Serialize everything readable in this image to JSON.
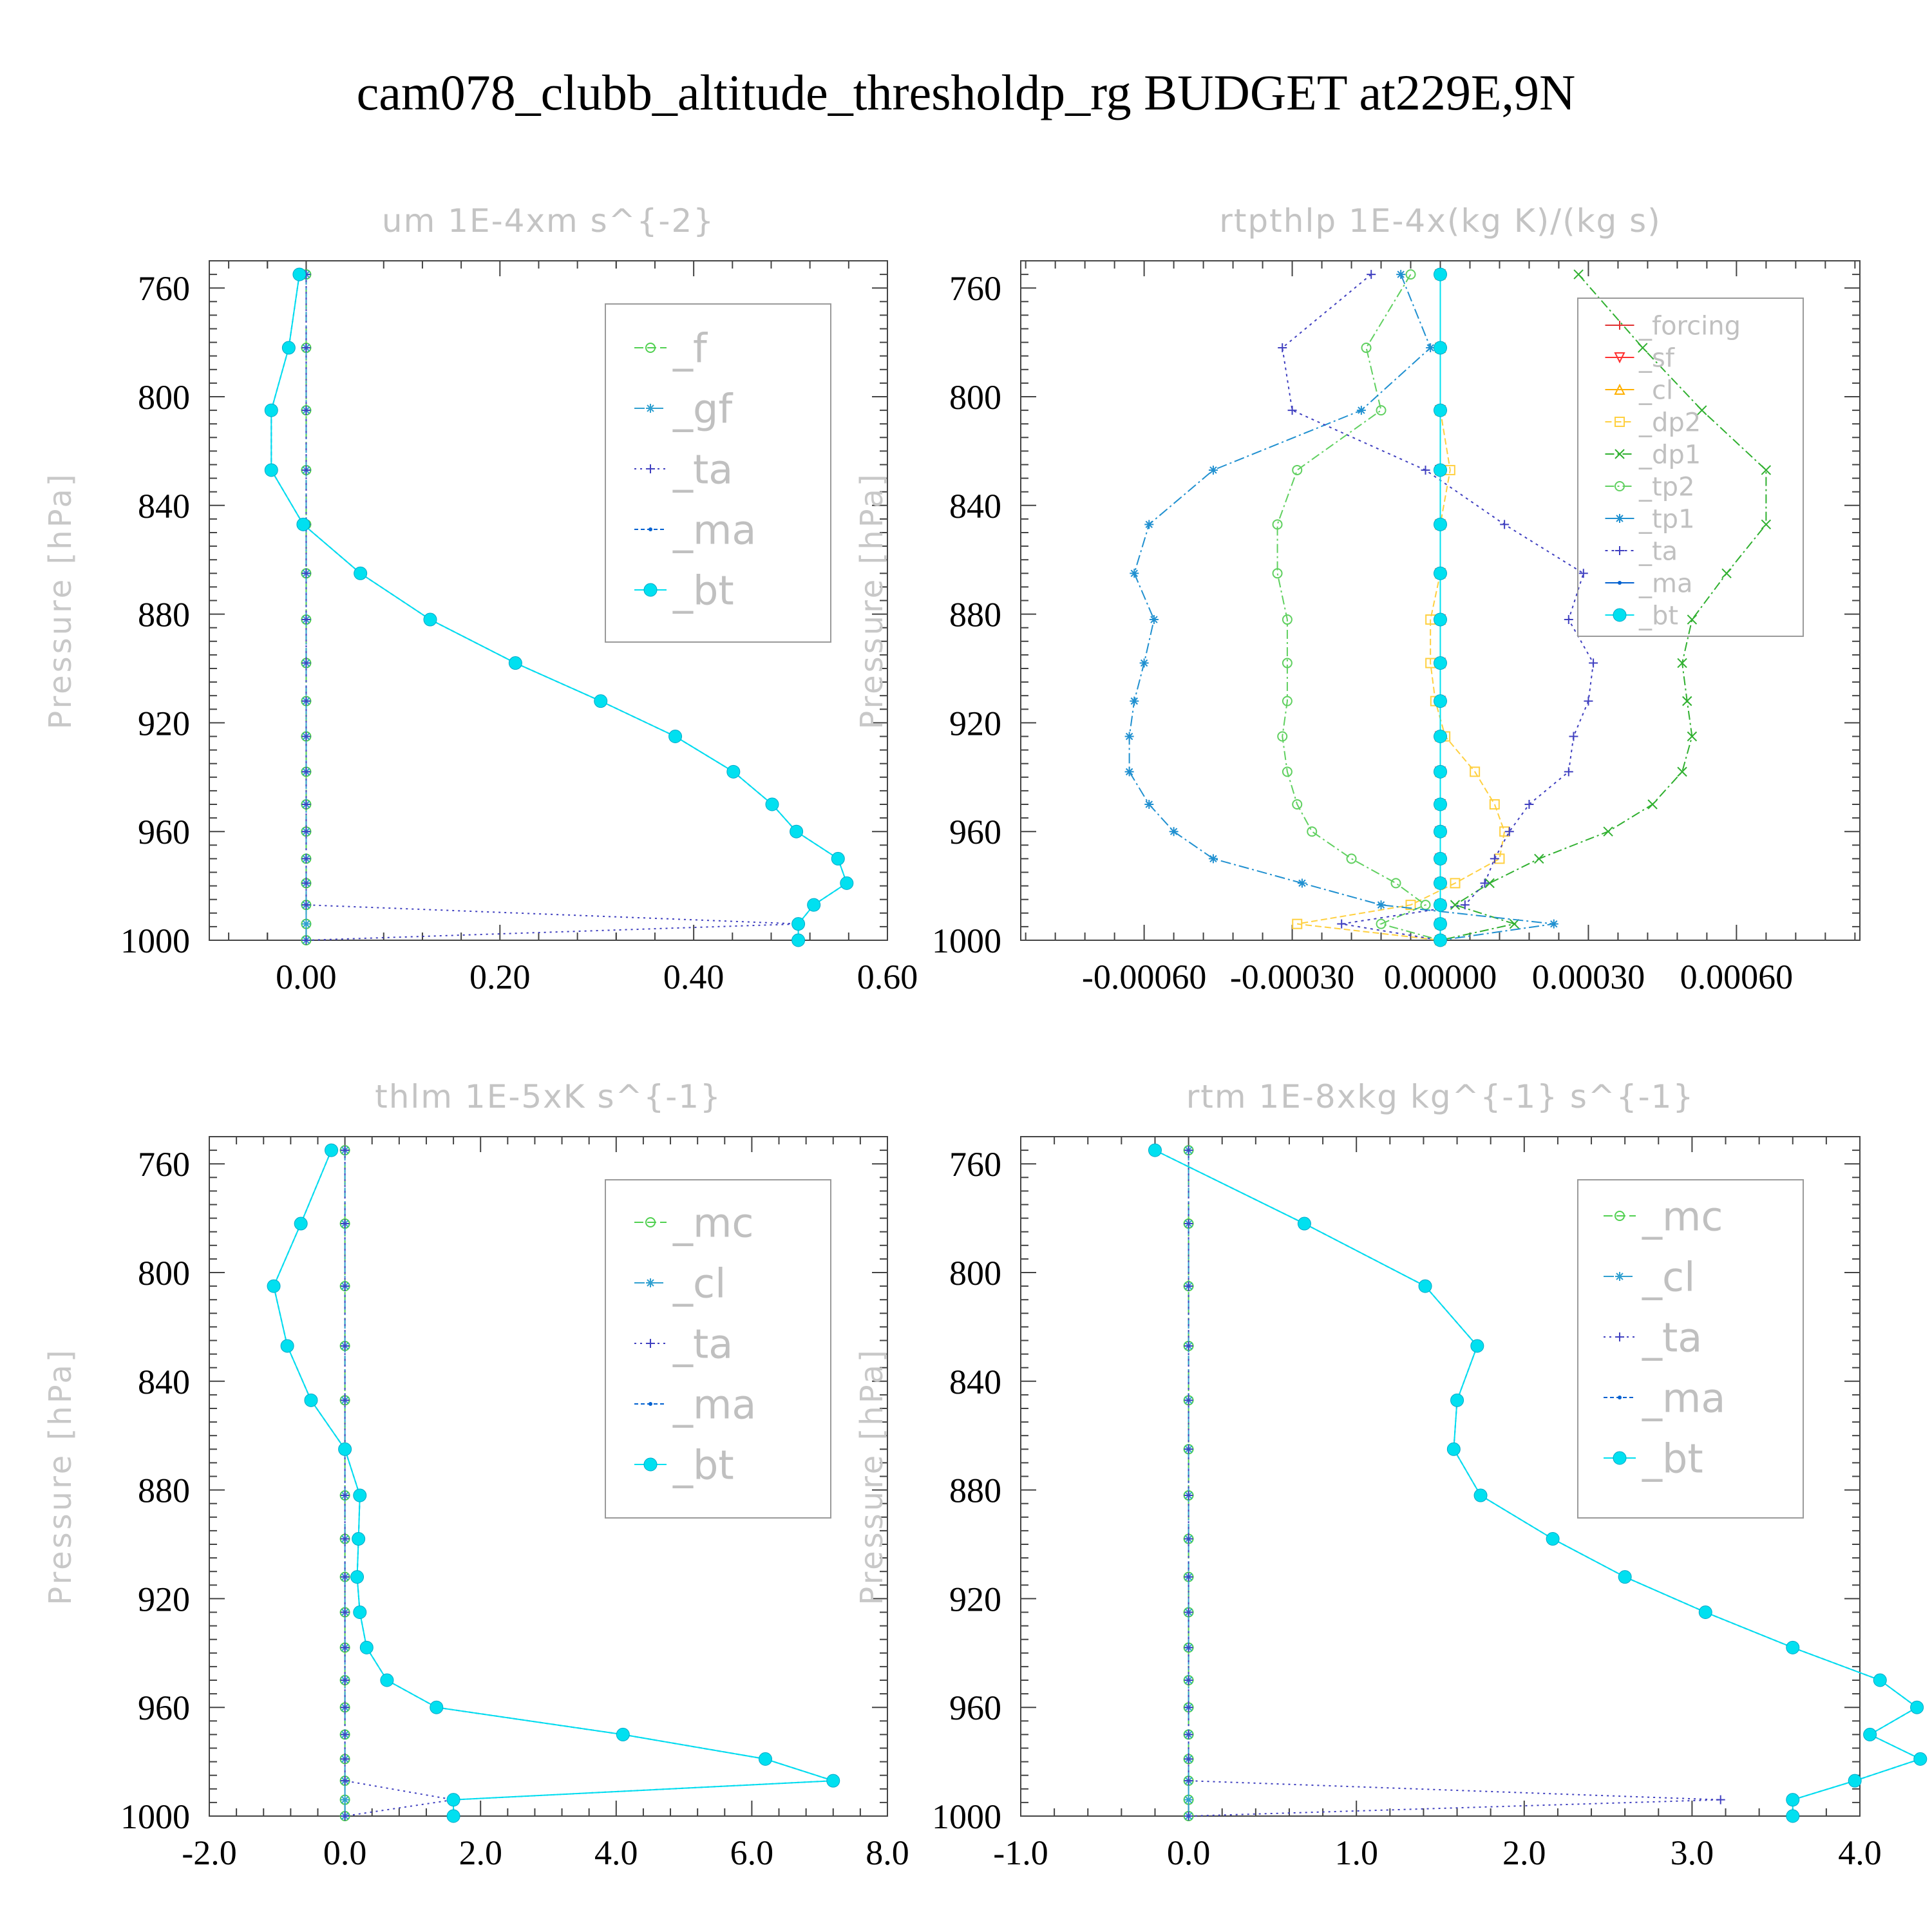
{
  "title": "cam078_clubb_altitude_thresholdp_rg  BUDGET at229E,9N",
  "colors": {
    "forcing": "#e03030",
    "sf": "#ff3030",
    "cl_rt": "#ffb000",
    "dp2": "#ffd040",
    "dp1": "#30b030",
    "tp2": "#60d060",
    "tp1": "#2090d0",
    "ta": "#4040c0",
    "ma": "#0060d0",
    "bt": "#00e0f0",
    "f": "#50d050",
    "gf": "#30a0d0",
    "mc": "#50d050",
    "cl": "#30a0d0"
  },
  "chart_data": [
    {
      "type": "line",
      "title": "um  1E-4xm s^{-2}",
      "ylabel": "Pressure [hPa]",
      "xlabel": "",
      "xlim": [
        -0.1,
        0.6
      ],
      "ylim": [
        1000,
        750
      ],
      "xticks": [
        "0.00",
        "0.20",
        "0.40",
        "0.60"
      ],
      "xtick_values": [
        0.0,
        0.2,
        0.4,
        0.6
      ],
      "yticks": [
        "760",
        "800",
        "840",
        "880",
        "920",
        "960",
        "1000"
      ],
      "ytick_values": [
        760,
        800,
        840,
        880,
        920,
        960,
        1000
      ],
      "legend_position": "top-right",
      "legend_font": 62,
      "legend": [
        "_f",
        "_gf",
        "_ta",
        "_ma",
        "_bt"
      ],
      "levels": [
        755,
        782,
        805,
        827,
        847,
        865,
        882,
        898,
        912,
        925,
        938,
        950,
        960,
        970,
        979,
        987,
        994,
        1000
      ],
      "series": [
        {
          "name": "_f",
          "key": "f",
          "marker": "circle",
          "dash": "14,6",
          "values": [
            0,
            0,
            0,
            0,
            0,
            0,
            0,
            0,
            0,
            0,
            0,
            0,
            0,
            0,
            0,
            0,
            0,
            0
          ]
        },
        {
          "name": "_gf",
          "key": "gf",
          "marker": "star",
          "dash": "16,5,3,5",
          "values": [
            0,
            0,
            0,
            0,
            0,
            0,
            0,
            0,
            0,
            0,
            0,
            0,
            0,
            0,
            0,
            0,
            0,
            0
          ]
        },
        {
          "name": "_ta",
          "key": "ta",
          "marker": "plus",
          "dash": "3,6",
          "values": [
            0,
            0,
            0,
            0,
            0,
            0,
            0,
            0,
            0,
            0,
            0,
            0,
            0,
            0,
            0,
            0,
            0.51,
            0
          ]
        },
        {
          "name": "_ma",
          "key": "ma",
          "marker": "dot",
          "dash": "6,4",
          "values": [
            -0.007,
            -0.018,
            -0.036,
            -0.036,
            -0.003,
            0.056,
            0.128,
            0.216,
            0.304,
            0.381,
            0.441,
            0.481,
            0.506,
            0.549,
            0.558,
            0.524,
            0.508,
            0.508
          ]
        },
        {
          "name": "_bt",
          "key": "bt",
          "marker": "bigdot",
          "dash": "none",
          "values": [
            -0.007,
            -0.018,
            -0.036,
            -0.036,
            -0.003,
            0.056,
            0.128,
            0.216,
            0.304,
            0.381,
            0.441,
            0.481,
            0.506,
            0.549,
            0.558,
            0.524,
            0.508,
            0.508
          ]
        }
      ]
    },
    {
      "type": "line",
      "title": "rtpthlp  1E-4x(kg K)/(kg s)",
      "ylabel": "Pressure [hPa]",
      "xlabel": "",
      "xlim": [
        -0.00085,
        0.00085
      ],
      "ylim": [
        1000,
        750
      ],
      "xticks": [
        "-0.00060",
        "-0.00030",
        "0.00000",
        "0.00030",
        "0.00060"
      ],
      "xtick_values": [
        -0.0006,
        -0.0003,
        0.0,
        0.0003,
        0.0006
      ],
      "yticks": [
        "760",
        "800",
        "840",
        "880",
        "920",
        "960",
        "1000"
      ],
      "ytick_values": [
        760,
        800,
        840,
        880,
        920,
        960,
        1000
      ],
      "legend_position": "top-right",
      "legend_font": 40,
      "legend": [
        "_forcing",
        "_sf",
        "_cl",
        "_dp2",
        "_dp1",
        "_tp2",
        "_tp1",
        "_ta",
        "_ma",
        "_bt"
      ],
      "levels": [
        755,
        782,
        805,
        827,
        847,
        865,
        882,
        898,
        912,
        925,
        938,
        950,
        960,
        970,
        979,
        987,
        994,
        1000
      ],
      "series": [
        {
          "name": "_forcing",
          "key": "forcing",
          "marker": "plus",
          "dash": "none",
          "values": [
            0,
            0,
            0,
            0,
            0,
            0,
            0,
            0,
            0,
            0,
            0,
            0,
            0,
            0,
            0,
            0,
            0,
            0
          ]
        },
        {
          "name": "_sf",
          "key": "sf",
          "marker": "tri-down",
          "dash": "none",
          "values": [
            0,
            0,
            0,
            0,
            0,
            0,
            0,
            0,
            0,
            0,
            0,
            0,
            0,
            0,
            0,
            0,
            0,
            0
          ]
        },
        {
          "name": "_cl",
          "key": "cl_rt",
          "marker": "tri-up",
          "dash": "none",
          "values": [
            0,
            0,
            0,
            0,
            0,
            0,
            0,
            0,
            0,
            0,
            0,
            0,
            0,
            0,
            0,
            0,
            0,
            0
          ]
        },
        {
          "name": "_dp2",
          "key": "dp2",
          "marker": "square",
          "dash": "10,5",
          "values": [
            0,
            0,
            0,
            2e-05,
            0,
            0,
            -2e-05,
            -2e-05,
            -1e-05,
            1e-05,
            7e-05,
            0.00011,
            0.00013,
            0.00012,
            3e-05,
            -6e-05,
            -0.00029,
            0
          ]
        },
        {
          "name": "_dp1",
          "key": "dp1",
          "marker": "x",
          "dash": "14,5,3,5",
          "values": [
            0.00028,
            0.00041,
            0.00053,
            0.00066,
            0.00066,
            0.00058,
            0.00051,
            0.00049,
            0.0005,
            0.00051,
            0.00049,
            0.00043,
            0.00034,
            0.0002,
            0.0001,
            3e-05,
            0.00015,
            0
          ]
        },
        {
          "name": "_tp2",
          "key": "tp2",
          "marker": "circle",
          "dash": "14,5,3,5",
          "values": [
            -6e-05,
            -0.00015,
            -0.00012,
            -0.00029,
            -0.00033,
            -0.00033,
            -0.00031,
            -0.00031,
            -0.00031,
            -0.00032,
            -0.00031,
            -0.00029,
            -0.00026,
            -0.00018,
            -9e-05,
            -3e-05,
            -0.00012,
            0
          ]
        },
        {
          "name": "_tp1",
          "key": "tp1",
          "marker": "star",
          "dash": "16,5,3,5",
          "values": [
            -8e-05,
            -2e-05,
            -0.00016,
            -0.00046,
            -0.00059,
            -0.00062,
            -0.00058,
            -0.0006,
            -0.00062,
            -0.00063,
            -0.00063,
            -0.00059,
            -0.00054,
            -0.00046,
            -0.00028,
            -0.00012,
            0.00023,
            0
          ]
        },
        {
          "name": "_ta",
          "key": "ta",
          "marker": "plus",
          "dash": "4,6",
          "values": [
            -0.00014,
            -0.00032,
            -0.0003,
            -3e-05,
            0.00013,
            0.00029,
            0.00026,
            0.00031,
            0.0003,
            0.00027,
            0.00026,
            0.00018,
            0.00014,
            0.00011,
            9e-05,
            5e-05,
            -0.0002,
            0
          ]
        },
        {
          "name": "_ma",
          "key": "ma",
          "marker": "dot",
          "dash": "none",
          "values": [
            0,
            0,
            0,
            0,
            0,
            0,
            0,
            0,
            0,
            0,
            0,
            0,
            0,
            0,
            0,
            0,
            0,
            0
          ]
        },
        {
          "name": "_bt",
          "key": "bt",
          "marker": "bigdot",
          "dash": "none",
          "values": [
            0,
            0,
            0,
            0,
            0,
            0,
            0,
            0,
            0,
            0,
            0,
            0,
            0,
            0,
            0,
            0,
            0,
            0
          ]
        }
      ]
    },
    {
      "type": "line",
      "title": "thlm  1E-5xK s^{-1}",
      "ylabel": "Pressure [hPa]",
      "xlabel": "",
      "xlim": [
        -2.0,
        8.0
      ],
      "ylim": [
        1000,
        750
      ],
      "xticks": [
        "-2.0",
        "0.0",
        "2.0",
        "4.0",
        "6.0",
        "8.0"
      ],
      "xtick_values": [
        -2.0,
        0.0,
        2.0,
        4.0,
        6.0,
        8.0
      ],
      "yticks": [
        "760",
        "800",
        "840",
        "880",
        "920",
        "960",
        "1000"
      ],
      "ytick_values": [
        760,
        800,
        840,
        880,
        920,
        960,
        1000
      ],
      "legend_position": "top-right",
      "legend_font": 62,
      "legend": [
        "_mc",
        "_cl",
        "_ta",
        "_ma",
        "_bt"
      ],
      "levels": [
        755,
        782,
        805,
        827,
        847,
        865,
        882,
        898,
        912,
        925,
        938,
        950,
        960,
        970,
        979,
        987,
        994,
        1000
      ],
      "series": [
        {
          "name": "_mc",
          "key": "mc",
          "marker": "circle",
          "dash": "14,6",
          "values": [
            0,
            0,
            0,
            0,
            0,
            0,
            0,
            0,
            0,
            0,
            0,
            0,
            0,
            0,
            0,
            0,
            0,
            0
          ]
        },
        {
          "name": "_cl",
          "key": "cl",
          "marker": "star",
          "dash": "16,5,3,5",
          "values": [
            0,
            0,
            0,
            0,
            0,
            0,
            0,
            0,
            0,
            0,
            0,
            0,
            0,
            0,
            0,
            0,
            0,
            0
          ]
        },
        {
          "name": "_ta",
          "key": "ta",
          "marker": "plus",
          "dash": "3,6",
          "values": [
            0,
            0,
            0,
            0,
            0,
            0,
            0,
            0,
            0,
            0,
            0,
            0,
            0,
            0,
            0,
            0,
            1.6,
            0
          ]
        },
        {
          "name": "_ma",
          "key": "ma",
          "marker": "dot",
          "dash": "6,4",
          "values": [
            -0.2,
            -0.65,
            -1.05,
            -0.85,
            -0.5,
            0.0,
            0.22,
            0.2,
            0.18,
            0.22,
            0.32,
            0.62,
            1.35,
            4.1,
            6.2,
            7.2,
            1.6,
            1.6
          ]
        },
        {
          "name": "_bt",
          "key": "bt",
          "marker": "bigdot",
          "dash": "none",
          "values": [
            -0.2,
            -0.65,
            -1.05,
            -0.85,
            -0.5,
            0.0,
            0.22,
            0.2,
            0.18,
            0.22,
            0.32,
            0.62,
            1.35,
            4.1,
            6.2,
            7.2,
            1.6,
            1.6
          ]
        }
      ]
    },
    {
      "type": "line",
      "title": "rtm  1E-8xkg kg^{-1} s^{-1}",
      "ylabel": "Pressure [hPa]",
      "xlabel": "",
      "xlim": [
        -1.0,
        4.0
      ],
      "ylim": [
        1000,
        750
      ],
      "xticks": [
        "-1.0",
        "0.0",
        "1.0",
        "2.0",
        "3.0",
        "4.0"
      ],
      "xtick_values": [
        -1.0,
        0.0,
        1.0,
        2.0,
        3.0,
        4.0
      ],
      "yticks": [
        "760",
        "800",
        "840",
        "880",
        "920",
        "960",
        "1000"
      ],
      "ytick_values": [
        760,
        800,
        840,
        880,
        920,
        960,
        1000
      ],
      "legend_position": "top-right",
      "legend_font": 62,
      "legend": [
        "_mc",
        "_cl",
        "_ta",
        "_ma",
        "_bt"
      ],
      "levels": [
        755,
        782,
        805,
        827,
        847,
        865,
        882,
        898,
        912,
        925,
        938,
        950,
        960,
        970,
        979,
        987,
        994,
        1000
      ],
      "series": [
        {
          "name": "_mc",
          "key": "mc",
          "marker": "circle",
          "dash": "14,6",
          "values": [
            0,
            0,
            0,
            0,
            0,
            0,
            0,
            0,
            0,
            0,
            0,
            0,
            0,
            0,
            0,
            0,
            0,
            0
          ]
        },
        {
          "name": "_cl",
          "key": "cl",
          "marker": "star",
          "dash": "16,5,3,5",
          "values": [
            0,
            0,
            0,
            0,
            0,
            0,
            0,
            0,
            0,
            0,
            0,
            0,
            0,
            0,
            0,
            0,
            0,
            0
          ]
        },
        {
          "name": "_ta",
          "key": "ta",
          "marker": "plus",
          "dash": "3,6",
          "values": [
            0,
            0,
            0,
            0,
            0,
            0,
            0,
            0,
            0,
            0,
            0,
            0,
            0,
            0,
            0,
            0,
            3.17,
            0
          ]
        },
        {
          "name": "_ma",
          "key": "ma",
          "marker": "dot",
          "dash": "6,4",
          "values": [
            -0.2,
            0.69,
            1.41,
            1.72,
            1.6,
            1.58,
            1.74,
            2.17,
            2.6,
            3.08,
            3.6,
            4.12,
            4.34,
            4.06,
            4.36,
            3.97,
            3.6,
            3.6
          ]
        },
        {
          "name": "_bt",
          "key": "bt",
          "marker": "bigdot",
          "dash": "none",
          "values": [
            -0.2,
            0.69,
            1.41,
            1.72,
            1.6,
            1.58,
            1.74,
            2.17,
            2.6,
            3.08,
            3.6,
            4.12,
            4.34,
            4.06,
            4.36,
            3.97,
            3.6,
            3.6
          ]
        }
      ]
    }
  ]
}
